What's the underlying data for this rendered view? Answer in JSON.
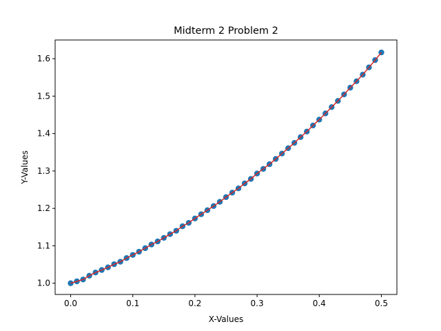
{
  "chart_data": {
    "type": "scatter",
    "title": "Midterm 2 Problem 2",
    "xlabel": "X-Values",
    "ylabel": "Y-Values",
    "xlim": [
      -0.025,
      0.525
    ],
    "ylim": [
      0.97,
      1.65
    ],
    "xticks": [
      0.0,
      0.1,
      0.2,
      0.3,
      0.4,
      0.5
    ],
    "xtick_labels": [
      "0.0",
      "0.1",
      "0.2",
      "0.3",
      "0.4",
      "0.5"
    ],
    "yticks": [
      1.0,
      1.1,
      1.2,
      1.3,
      1.4,
      1.5,
      1.6
    ],
    "ytick_labels": [
      "1.0",
      "1.1",
      "1.2",
      "1.3",
      "1.4",
      "1.5",
      "1.6"
    ],
    "grid": false,
    "series": [
      {
        "kind": "scatter",
        "color": "#1f77b4",
        "x": [
          0.0,
          0.01,
          0.02,
          0.03,
          0.04,
          0.05,
          0.06,
          0.07,
          0.08,
          0.09,
          0.1,
          0.11,
          0.12,
          0.13,
          0.14,
          0.15,
          0.16,
          0.17,
          0.18,
          0.19,
          0.2,
          0.21,
          0.22,
          0.23,
          0.24,
          0.25,
          0.26,
          0.27,
          0.28,
          0.29,
          0.3,
          0.31,
          0.32,
          0.33,
          0.34,
          0.35,
          0.36,
          0.37,
          0.38,
          0.39,
          0.4,
          0.41,
          0.42,
          0.43,
          0.44,
          0.45,
          0.46,
          0.47,
          0.48,
          0.49,
          0.5
        ],
        "y": [
          1.0,
          1.005,
          1.01,
          1.0201,
          1.0286,
          1.0354,
          1.0424,
          1.0508,
          1.0574,
          1.0672,
          1.0757,
          1.0842,
          1.0937,
          1.1034,
          1.1117,
          1.1212,
          1.1311,
          1.1402,
          1.1522,
          1.1614,
          1.1731,
          1.1843,
          1.1952,
          1.2062,
          1.2175,
          1.2301,
          1.2421,
          1.2534,
          1.2669,
          1.2787,
          1.2932,
          1.3056,
          1.3181,
          1.3321,
          1.3465,
          1.3608,
          1.3751,
          1.3905,
          1.4052,
          1.4216,
          1.4372,
          1.4538,
          1.4707,
          1.4873,
          1.5046,
          1.5226,
          1.5398,
          1.5574,
          1.5768,
          1.5963,
          1.6167
        ]
      },
      {
        "kind": "line",
        "color": "#d62728",
        "x": [
          0.0,
          0.01,
          0.02,
          0.03,
          0.04,
          0.05,
          0.06,
          0.07,
          0.08,
          0.09,
          0.1,
          0.11,
          0.12,
          0.13,
          0.14,
          0.15,
          0.16,
          0.17,
          0.18,
          0.19,
          0.2,
          0.21,
          0.22,
          0.23,
          0.24,
          0.25,
          0.26,
          0.27,
          0.28,
          0.29,
          0.3,
          0.31,
          0.32,
          0.33,
          0.34,
          0.35,
          0.36,
          0.37,
          0.38,
          0.39,
          0.4,
          0.41,
          0.42,
          0.43,
          0.44,
          0.45,
          0.46,
          0.47,
          0.48,
          0.49,
          0.5
        ],
        "y": [
          1.0,
          1.005,
          1.01,
          1.0201,
          1.0286,
          1.0354,
          1.0424,
          1.0508,
          1.0574,
          1.0672,
          1.0757,
          1.0842,
          1.0937,
          1.1034,
          1.1117,
          1.1212,
          1.1311,
          1.1402,
          1.1522,
          1.1614,
          1.1731,
          1.1843,
          1.1952,
          1.2062,
          1.2175,
          1.2301,
          1.2421,
          1.2534,
          1.2669,
          1.2787,
          1.2932,
          1.3056,
          1.3181,
          1.3321,
          1.3465,
          1.3608,
          1.3751,
          1.3905,
          1.4052,
          1.4216,
          1.4372,
          1.4538,
          1.4707,
          1.4873,
          1.5046,
          1.5226,
          1.5398,
          1.5574,
          1.5768,
          1.5963,
          1.6167
        ]
      }
    ]
  }
}
